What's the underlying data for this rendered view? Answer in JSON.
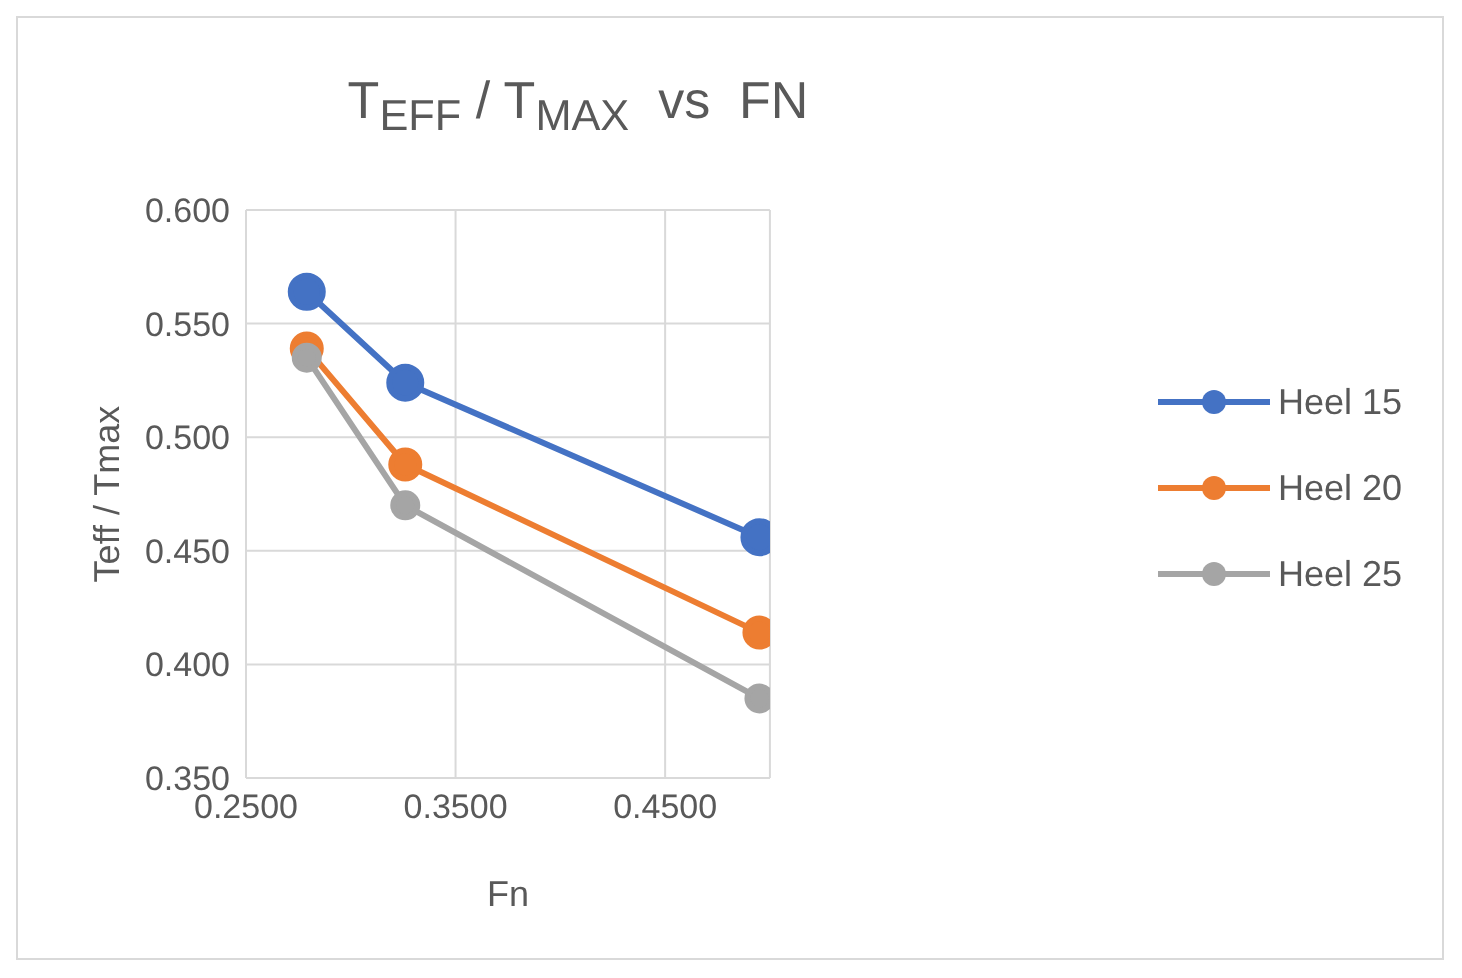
{
  "chart_data": {
    "type": "line",
    "title": "T$_{EFF}$ / T$_{MAX}$  vs  FN",
    "xlabel": "Fn",
    "ylabel": "Teff / Tmax",
    "x": [
      0.279,
      0.326,
      0.495
    ],
    "series": [
      {
        "name": "Heel 15",
        "color": "#4472c4",
        "values": [
          0.564,
          0.524,
          0.456
        ]
      },
      {
        "name": "Heel 20",
        "color": "#ed7d31",
        "values": [
          0.539,
          0.488,
          0.414
        ]
      },
      {
        "name": "Heel 25",
        "color": "#a5a5a5",
        "values": [
          0.535,
          0.47,
          0.385
        ]
      }
    ],
    "xlim": [
      0.25,
      0.5
    ],
    "xticks": [
      {
        "value": 0.25,
        "label": "0.2500"
      },
      {
        "value": 0.35,
        "label": "0.3500"
      },
      {
        "value": 0.45,
        "label": "0.4500"
      }
    ],
    "ylim": [
      0.35,
      0.6
    ],
    "yticks": [
      {
        "value": 0.35,
        "label": "0.350"
      },
      {
        "value": 0.4,
        "label": "0.400"
      },
      {
        "value": 0.45,
        "label": "0.450"
      },
      {
        "value": 0.5,
        "label": "0.500"
      },
      {
        "value": 0.55,
        "label": "0.550"
      },
      {
        "value": 0.6,
        "label": "0.600"
      }
    ],
    "grid": true,
    "legend": "right",
    "marker": "circle",
    "line_style": "solid"
  }
}
